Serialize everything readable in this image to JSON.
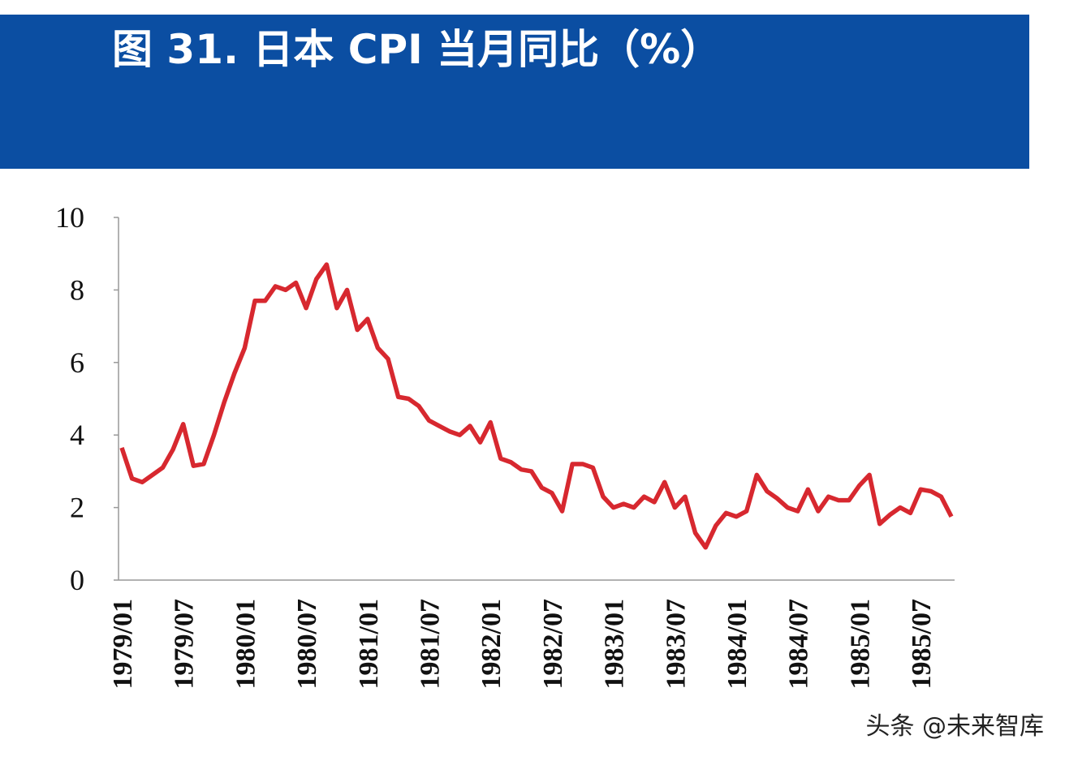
{
  "chart_data": {
    "type": "line",
    "title": "图 31. 日本 CPI 当月同比（%）",
    "watermark": "头条 @未来智库",
    "categories": [
      "1979/01",
      null,
      null,
      null,
      null,
      null,
      "1979/07",
      null,
      null,
      null,
      null,
      null,
      "1980/01",
      null,
      null,
      null,
      null,
      null,
      "1980/07",
      null,
      null,
      null,
      null,
      null,
      "1981/01",
      null,
      null,
      null,
      null,
      null,
      "1981/07",
      null,
      null,
      null,
      null,
      null,
      "1982/01",
      null,
      null,
      null,
      null,
      null,
      "1982/07",
      null,
      null,
      null,
      null,
      null,
      "1983/01",
      null,
      null,
      null,
      null,
      null,
      "1983/07",
      null,
      null,
      null,
      null,
      null,
      "1984/01",
      null,
      null,
      null,
      null,
      null,
      "1984/07",
      null,
      null,
      null,
      null,
      null,
      "1985/01",
      null,
      null,
      null,
      null,
      null,
      "1985/07",
      null,
      null,
      null
    ],
    "series": [
      {
        "name": "CPI",
        "color": "#d7282f",
        "values": [
          3.65,
          2.8,
          2.7,
          2.9,
          3.1,
          3.6,
          4.3,
          3.15,
          3.2,
          4.0,
          4.9,
          5.7,
          6.4,
          7.7,
          7.7,
          8.1,
          8.0,
          8.2,
          7.5,
          8.3,
          8.7,
          7.5,
          8.0,
          6.9,
          7.2,
          6.4,
          6.1,
          5.05,
          5.0,
          4.8,
          4.4,
          4.25,
          4.1,
          4.0,
          4.25,
          3.8,
          4.35,
          3.35,
          3.25,
          3.05,
          3.0,
          2.55,
          2.4,
          1.9,
          3.2,
          3.2,
          3.1,
          2.3,
          2.0,
          2.1,
          2.0,
          2.3,
          2.15,
          2.7,
          2.0,
          2.3,
          1.3,
          0.9,
          1.5,
          1.85,
          1.75,
          1.9,
          2.9,
          2.45,
          2.25,
          2.0,
          1.9,
          2.5,
          1.9,
          2.3,
          2.2,
          2.2,
          2.6,
          2.9,
          1.55,
          1.8,
          2.0,
          1.85,
          2.5,
          2.45,
          2.3,
          1.75
        ]
      }
    ],
    "ylim": [
      0,
      10
    ],
    "yticks": [
      0,
      2,
      4,
      6,
      8,
      10
    ],
    "grid": false
  }
}
